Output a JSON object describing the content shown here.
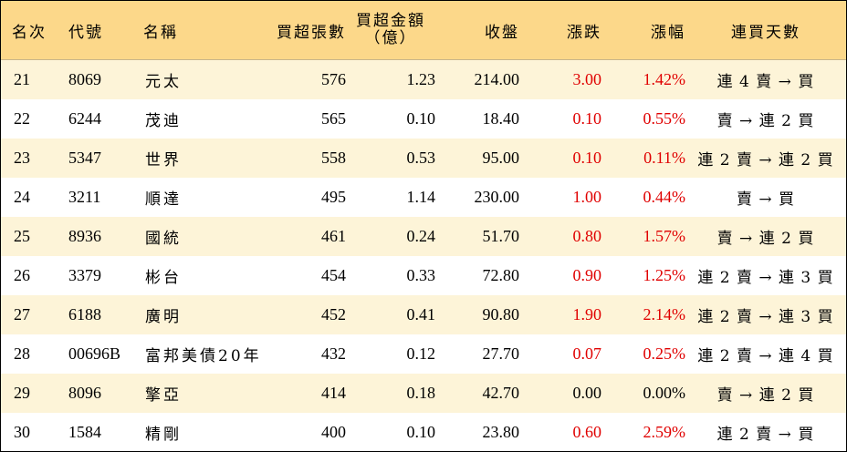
{
  "table": {
    "headers": {
      "rank": "名次",
      "code": "代號",
      "name": "名稱",
      "lots": "買超張數",
      "amount_line1": "買超金額",
      "amount_line2": "（億）",
      "close": "收盤",
      "change": "漲跌",
      "pct": "漲幅",
      "streak": "連買天數"
    },
    "rows": [
      {
        "rank": "21",
        "code": "8069",
        "name": "元太",
        "lots": "576",
        "amount": "1.23",
        "close": "214.00",
        "change": "3.00",
        "pct": "1.42%",
        "streak": "連 4 賣 → 買",
        "up": true
      },
      {
        "rank": "22",
        "code": "6244",
        "name": "茂迪",
        "lots": "565",
        "amount": "0.10",
        "close": "18.40",
        "change": "0.10",
        "pct": "0.55%",
        "streak": "賣 → 連 2 買",
        "up": true
      },
      {
        "rank": "23",
        "code": "5347",
        "name": "世界",
        "lots": "558",
        "amount": "0.53",
        "close": "95.00",
        "change": "0.10",
        "pct": "0.11%",
        "streak": "連 2 賣 → 連 2 買",
        "up": true
      },
      {
        "rank": "24",
        "code": "3211",
        "name": "順達",
        "lots": "495",
        "amount": "1.14",
        "close": "230.00",
        "change": "1.00",
        "pct": "0.44%",
        "streak": "賣 → 買",
        "up": true
      },
      {
        "rank": "25",
        "code": "8936",
        "name": "國統",
        "lots": "461",
        "amount": "0.24",
        "close": "51.70",
        "change": "0.80",
        "pct": "1.57%",
        "streak": "賣 → 連 2 買",
        "up": true
      },
      {
        "rank": "26",
        "code": "3379",
        "name": "彬台",
        "lots": "454",
        "amount": "0.33",
        "close": "72.80",
        "change": "0.90",
        "pct": "1.25%",
        "streak": "連 2 賣 → 連 3 買",
        "up": true
      },
      {
        "rank": "27",
        "code": "6188",
        "name": "廣明",
        "lots": "452",
        "amount": "0.41",
        "close": "90.80",
        "change": "1.90",
        "pct": "2.14%",
        "streak": "連 2 賣 → 連 3 買",
        "up": true
      },
      {
        "rank": "28",
        "code": "00696B",
        "name": "富邦美債20年",
        "lots": "432",
        "amount": "0.12",
        "close": "27.70",
        "change": "0.07",
        "pct": "0.25%",
        "streak": "連 2 賣 → 連 4 買",
        "up": true
      },
      {
        "rank": "29",
        "code": "8096",
        "name": "擎亞",
        "lots": "414",
        "amount": "0.18",
        "close": "42.70",
        "change": "0.00",
        "pct": "0.00%",
        "streak": "賣 → 連 2 買",
        "up": false
      },
      {
        "rank": "30",
        "code": "1584",
        "name": "精剛",
        "lots": "400",
        "amount": "0.10",
        "close": "23.80",
        "change": "0.60",
        "pct": "2.59%",
        "streak": "連 2 賣 → 買",
        "up": true
      }
    ]
  }
}
